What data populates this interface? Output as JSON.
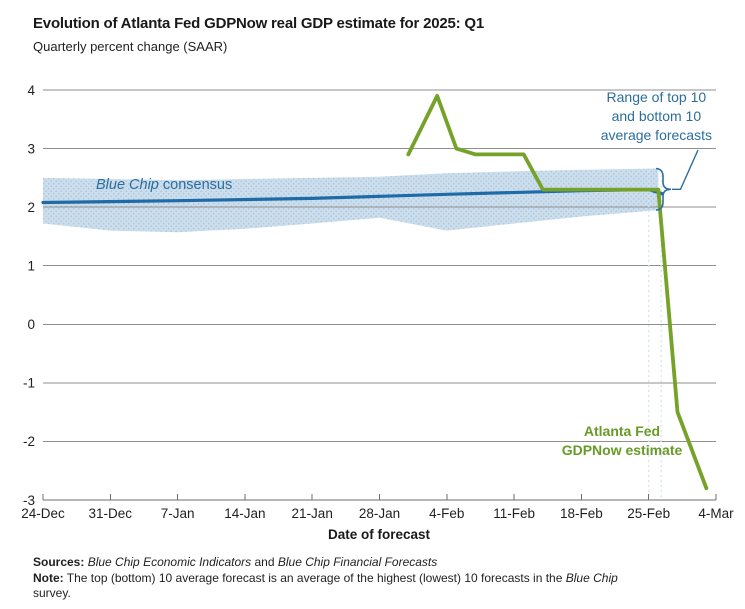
{
  "header": {
    "title": "Evolution of Atlanta Fed GDPNow real GDP estimate for 2025: Q1",
    "subtitle": "Quarterly percent change (SAAR)"
  },
  "colors": {
    "green_line": "#76A22A",
    "green_text": "#679B27",
    "blue_line": "#1F6BA8",
    "band_fill": "#CCDDEC",
    "band_dots": "#A4C3DD",
    "annotation_blue": "#2B6E9E",
    "gridline": "#8F8F8F",
    "axis": "#6E6E6E",
    "reference_line": "#D5E5F2",
    "text": "#1F1F1F"
  },
  "chart_data": {
    "type": "line",
    "title": "Evolution of Atlanta Fed GDPNow real GDP estimate for 2025: Q1",
    "xlabel": "Date of forecast",
    "ylabel": "Quarterly percent change (SAAR)",
    "ylim": [
      -3,
      4
    ],
    "y_ticks": [
      4,
      3,
      2,
      1,
      0,
      -1,
      -2,
      -3
    ],
    "x_ticks": [
      "24-Dec",
      "31-Dec",
      "7-Jan",
      "14-Jan",
      "21-Jan",
      "28-Jan",
      "4-Feb",
      "11-Feb",
      "18-Feb",
      "25-Feb",
      "4-Mar"
    ],
    "x_tick_interval_days": 7,
    "x_axis_span_days": 70,
    "grid": "horizontal",
    "legend_position": "inline-annotations",
    "series": [
      {
        "name": "Atlanta Fed GDPNow estimate",
        "color": "#76A22A",
        "points": [
          {
            "date": "31-Jan",
            "day": 38,
            "value": 2.9
          },
          {
            "date": "3-Feb",
            "day": 41,
            "value": 3.9
          },
          {
            "date": "5-Feb",
            "day": 43,
            "value": 3.0
          },
          {
            "date": "7-Feb",
            "day": 45,
            "value": 2.9
          },
          {
            "date": "12-Feb",
            "day": 50,
            "value": 2.9
          },
          {
            "date": "14-Feb",
            "day": 52,
            "value": 2.3
          },
          {
            "date": "26-Feb",
            "day": 64,
            "value": 2.3
          },
          {
            "date": "28-Feb",
            "day": 66,
            "value": -1.5
          },
          {
            "date": "3-Mar",
            "day": 69,
            "value": -2.8
          }
        ]
      },
      {
        "name": "Blue Chip consensus",
        "color": "#1F6BA8",
        "points": [
          {
            "date": "24-Dec",
            "day": 0,
            "value": 2.08
          },
          {
            "date": "7-Jan",
            "day": 14,
            "value": 2.11
          },
          {
            "date": "21-Jan",
            "day": 28,
            "value": 2.15
          },
          {
            "date": "4-Feb",
            "day": 42,
            "value": 2.22
          },
          {
            "date": "18-Feb",
            "day": 56,
            "value": 2.28
          },
          {
            "date": "25-Feb",
            "day": 63,
            "value": 2.3
          },
          {
            "date": "26-Feb",
            "day": 64.4,
            "value": 2.23
          }
        ]
      }
    ],
    "band": {
      "name": "Range of top 10 and bottom 10 average forecasts",
      "color": "#CCDDEC",
      "points": [
        {
          "day": 0,
          "top": 2.5,
          "bottom": 1.72
        },
        {
          "day": 7,
          "top": 2.48,
          "bottom": 1.6
        },
        {
          "day": 14,
          "top": 2.46,
          "bottom": 1.57
        },
        {
          "day": 21,
          "top": 2.48,
          "bottom": 1.63
        },
        {
          "day": 28,
          "top": 2.5,
          "bottom": 1.72
        },
        {
          "day": 35,
          "top": 2.52,
          "bottom": 1.82
        },
        {
          "day": 42,
          "top": 2.58,
          "bottom": 1.6
        },
        {
          "day": 49,
          "top": 2.61,
          "bottom": 1.72
        },
        {
          "day": 56,
          "top": 2.64,
          "bottom": 1.84
        },
        {
          "day": 64,
          "top": 2.66,
          "bottom": 1.95
        }
      ]
    },
    "reference_days": [
      63,
      64.3
    ]
  },
  "labels": {
    "series_blue_italic": "Blue Chip",
    "series_blue_rest": " consensus",
    "annotation_lines": [
      "Range of top 10",
      "and bottom 10",
      "average forecasts"
    ],
    "gdpnow_label_lines": [
      "Atlanta Fed",
      "GDPNow estimate"
    ]
  },
  "footer": {
    "sources_label": "Sources:",
    "source_1": "Blue Chip Economic Indicators",
    "sources_and": "and",
    "source_2": "Blue Chip Financial Forecasts",
    "note_label": "Note:",
    "note_text_1": "The top (bottom) 10 average forecast is an average of the highest (lowest) 10 forecasts in the",
    "note_italic": "Blue Chip",
    "note_text_2": "survey."
  }
}
